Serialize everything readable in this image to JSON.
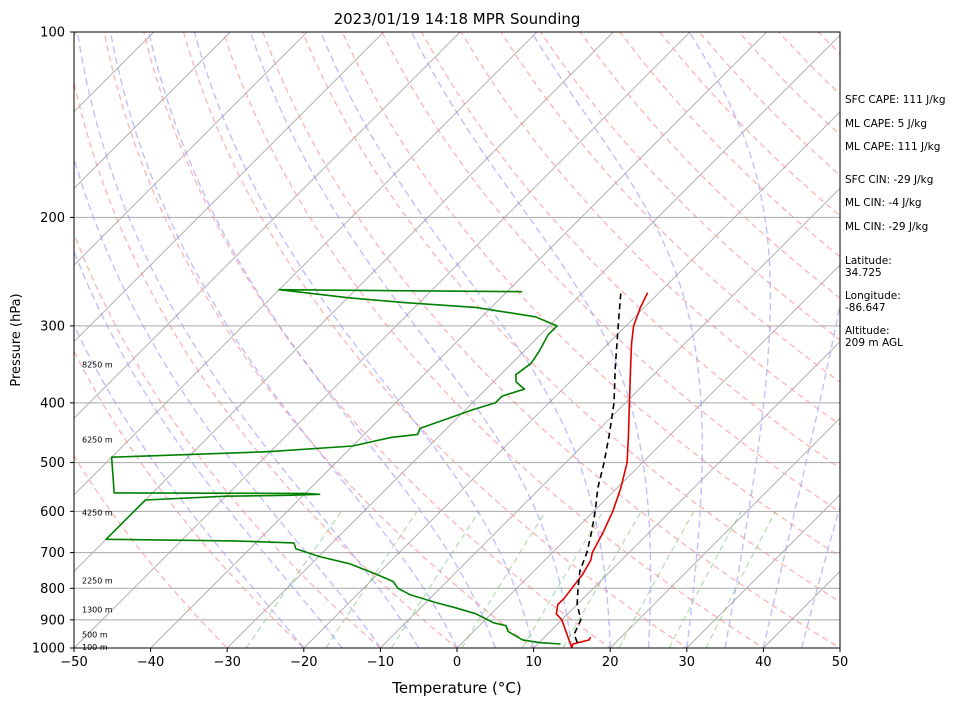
{
  "chart_data": {
    "type": "skew-t sounding",
    "title": "2023/01/19 14:18 MPR Sounding",
    "xlabel": "Temperature (°C)",
    "ylabel": "Pressure (hPa)",
    "xlim": [
      -50,
      50
    ],
    "ylim": [
      1000,
      100
    ],
    "y_scale": "log",
    "x_ticks": [
      -50,
      -40,
      -30,
      -20,
      -10,
      0,
      10,
      20,
      30,
      40,
      50
    ],
    "y_ticks": [
      100,
      200,
      300,
      400,
      500,
      600,
      700,
      800,
      900,
      1000
    ],
    "grid": true,
    "background_lines": {
      "isotherms": "gray solid",
      "dry_adiabats": "red dashed",
      "moist_adiabats": "blue dashed",
      "mixing_ratio": "green dashed"
    },
    "series": [
      {
        "color": "#e00000",
        "style": "solid",
        "points": [
          [
            960,
            16.0
          ],
          [
            970,
            16.2
          ],
          [
            975,
            15.7
          ],
          [
            985,
            14.6
          ],
          [
            1000,
            15.0
          ],
          [
            900,
            10.0
          ],
          [
            880,
            8.5
          ],
          [
            850,
            7.5
          ],
          [
            830,
            7.5
          ],
          [
            800,
            7.2
          ],
          [
            760,
            6.8
          ],
          [
            720,
            6.0
          ],
          [
            700,
            5.2
          ],
          [
            650,
            4.0
          ],
          [
            600,
            2.5
          ],
          [
            550,
            0.5
          ],
          [
            500,
            -2.0
          ],
          [
            450,
            -5.5
          ],
          [
            400,
            -9.5
          ],
          [
            350,
            -14.0
          ],
          [
            320,
            -17.0
          ],
          [
            300,
            -19.0
          ],
          [
            280,
            -20.5
          ],
          [
            265,
            -21.5
          ]
        ]
      },
      {
        "color": "#000000",
        "style": "dashed",
        "points": [
          [
            980,
            15.0
          ],
          [
            950,
            13.5
          ],
          [
            900,
            12.5
          ],
          [
            850,
            10.0
          ],
          [
            800,
            8.0
          ],
          [
            750,
            6.0
          ],
          [
            700,
            4.5
          ],
          [
            650,
            2.5
          ],
          [
            600,
            0.2
          ],
          [
            550,
            -2.5
          ],
          [
            500,
            -5.0
          ],
          [
            450,
            -8.0
          ],
          [
            400,
            -11.5
          ],
          [
            350,
            -16.0
          ],
          [
            300,
            -21.0
          ],
          [
            265,
            -25.0
          ]
        ]
      },
      {
        "color": "#008000",
        "style": "solid",
        "points": [
          [
            985,
            13.0
          ],
          [
            980,
            10.0
          ],
          [
            970,
            7.5
          ],
          [
            960,
            6.5
          ],
          [
            940,
            4.5
          ],
          [
            920,
            3.5
          ],
          [
            910,
            1.5
          ],
          [
            880,
            -2.0
          ],
          [
            860,
            -5.5
          ],
          [
            845,
            -8.5
          ],
          [
            820,
            -13.0
          ],
          [
            800,
            -15.5
          ],
          [
            780,
            -17.0
          ],
          [
            760,
            -20.0
          ],
          [
            730,
            -25.0
          ],
          [
            710,
            -30.0
          ],
          [
            690,
            -34.0
          ],
          [
            675,
            -35.0
          ],
          [
            670,
            -43.0
          ],
          [
            666,
            -60.0
          ],
          [
            575,
            -60.0
          ],
          [
            567,
            -50.0
          ],
          [
            565,
            -42.0
          ],
          [
            563,
            -38.0
          ],
          [
            561,
            -40.0
          ],
          [
            560,
            -65.0
          ],
          [
            490,
            -70.0
          ],
          [
            480,
            -50.0
          ],
          [
            470,
            -40.0
          ],
          [
            455,
            -36.0
          ],
          [
            450,
            -33.0
          ],
          [
            440,
            -33.5
          ],
          [
            420,
            -30.5
          ],
          [
            410,
            -29.0
          ],
          [
            400,
            -27.0
          ],
          [
            390,
            -27.0
          ],
          [
            380,
            -25.0
          ],
          [
            370,
            -27.0
          ],
          [
            360,
            -28.0
          ],
          [
            345,
            -27.5
          ],
          [
            330,
            -28.0
          ],
          [
            310,
            -29.0
          ],
          [
            300,
            -29.0
          ],
          [
            290,
            -33.0
          ],
          [
            280,
            -42.0
          ],
          [
            275,
            -52.0
          ],
          [
            270,
            -60.0
          ],
          [
            262,
            -70.0
          ],
          [
            263,
            -55.0
          ],
          [
            264,
            -38.0
          ]
        ]
      }
    ],
    "height_labels": [
      {
        "label": "100 m",
        "p": 1000
      },
      {
        "label": "500 m",
        "p": 955
      },
      {
        "label": "1300 m",
        "p": 870
      },
      {
        "label": "2250 m",
        "p": 780
      },
      {
        "label": "4250 m",
        "p": 605
      },
      {
        "label": "6250 m",
        "p": 460
      },
      {
        "label": "8250 m",
        "p": 348
      }
    ]
  },
  "sidebar": {
    "sfc_cape": "SFC CAPE: 111 J/kg",
    "ml_cape_1": "ML CAPE: 5 J/kg",
    "ml_cape_2": "ML CAPE: 111 J/kg",
    "sfc_cin": "SFC CIN: -29 J/kg",
    "ml_cin_1": "ML CIN: -4 J/kg",
    "ml_cin_2": "ML CIN: -29 J/kg",
    "latitude": "Latitude:\n34.725",
    "longitude": "Longitude:\n-86.647",
    "altitude": "Altitude:\n209 m AGL"
  }
}
